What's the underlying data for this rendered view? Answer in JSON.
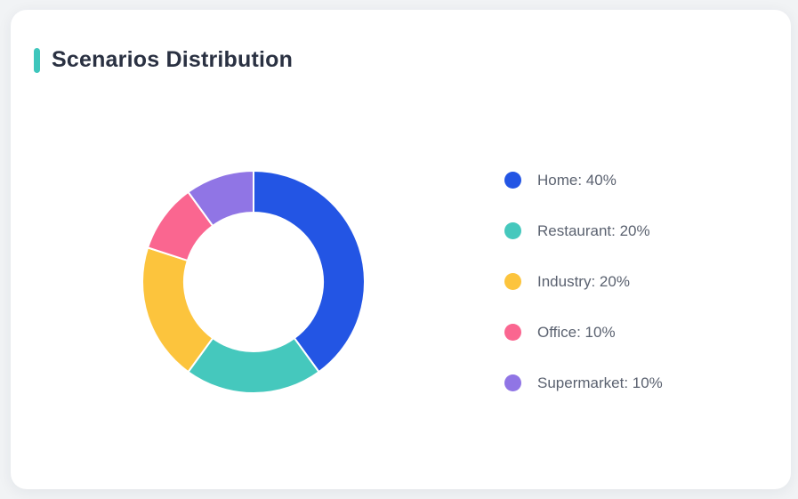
{
  "colors": {
    "page_bg": "#F1F3F5",
    "card_bg": "#FFFFFF",
    "accent": "#3EC6BC",
    "title_text": "#2A3142",
    "legend_text": "#5B6270"
  },
  "chart_data": {
    "type": "pie",
    "subtype": "donut",
    "title": "Scenarios Distribution",
    "legend_position": "right",
    "start_angle_deg": 0,
    "direction": "clockwise",
    "inner_radius_ratio": 0.62,
    "unit": "%",
    "categories": [
      "Home",
      "Restaurant",
      "Industry",
      "Office",
      "Supermarket"
    ],
    "values": [
      40,
      20,
      20,
      10,
      10
    ],
    "series": [
      {
        "name": "Home",
        "value": 40,
        "color": "#2355E4",
        "legend_text": "Home: 40%"
      },
      {
        "name": "Restaurant",
        "value": 20,
        "color": "#45C8BD",
        "legend_text": "Restaurant: 20%"
      },
      {
        "name": "Industry",
        "value": 20,
        "color": "#FCC43D",
        "legend_text": "Industry: 20%"
      },
      {
        "name": "Office",
        "value": 10,
        "color": "#FA6690",
        "legend_text": "Office: 10%"
      },
      {
        "name": "Supermarket",
        "value": 10,
        "color": "#9075E5",
        "legend_text": "Supermarket: 10%"
      }
    ]
  }
}
